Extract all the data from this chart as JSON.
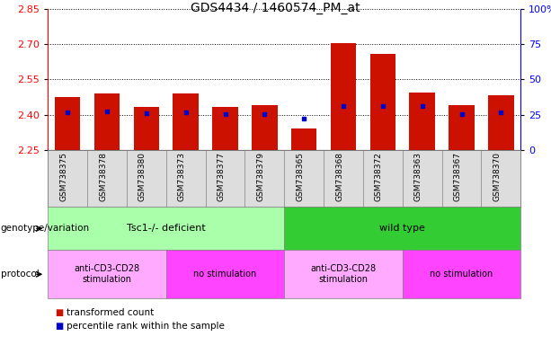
{
  "title": "GDS4434 / 1460574_PM_at",
  "samples": [
    "GSM738375",
    "GSM738378",
    "GSM738380",
    "GSM738373",
    "GSM738377",
    "GSM738379",
    "GSM738365",
    "GSM738368",
    "GSM738372",
    "GSM738363",
    "GSM738367",
    "GSM738370"
  ],
  "bar_bottoms": [
    2.25,
    2.25,
    2.25,
    2.25,
    2.25,
    2.25,
    2.25,
    2.25,
    2.25,
    2.25,
    2.25,
    2.25
  ],
  "bar_tops": [
    2.475,
    2.492,
    2.432,
    2.492,
    2.432,
    2.442,
    2.342,
    2.702,
    2.658,
    2.494,
    2.442,
    2.482
  ],
  "blue_dots": [
    2.41,
    2.415,
    2.405,
    2.41,
    2.404,
    2.404,
    2.385,
    2.436,
    2.436,
    2.435,
    2.404,
    2.41
  ],
  "ylim_left": [
    2.25,
    2.85
  ],
  "ylim_right": [
    0,
    100
  ],
  "yticks_left": [
    2.25,
    2.4,
    2.55,
    2.7,
    2.85
  ],
  "yticks_right": [
    0,
    25,
    50,
    75,
    100
  ],
  "ytick_labels_right": [
    "0",
    "25",
    "50",
    "75",
    "100%"
  ],
  "bar_color": "#cc1100",
  "blue_color": "#0000cc",
  "groups": [
    {
      "label": "Tsc1-/- deficient",
      "start": 0,
      "end": 6,
      "color": "#aaffaa"
    },
    {
      "label": "wild type",
      "start": 6,
      "end": 12,
      "color": "#33cc33"
    }
  ],
  "protocols": [
    {
      "label": "anti-CD3-CD28\nstimulation",
      "start": 0,
      "end": 3,
      "color": "#ffaaff"
    },
    {
      "label": "no stimulation",
      "start": 3,
      "end": 6,
      "color": "#ff44ff"
    },
    {
      "label": "anti-CD3-CD28\nstimulation",
      "start": 6,
      "end": 9,
      "color": "#ffaaff"
    },
    {
      "label": "no stimulation",
      "start": 9,
      "end": 12,
      "color": "#ff44ff"
    }
  ],
  "legend_bar_color": "#cc1100",
  "legend_dot_color": "#0000cc",
  "legend_text1": "transformed count",
  "legend_text2": "percentile rank within the sample",
  "label_genotype": "genotype/variation",
  "label_protocol": "protocol"
}
